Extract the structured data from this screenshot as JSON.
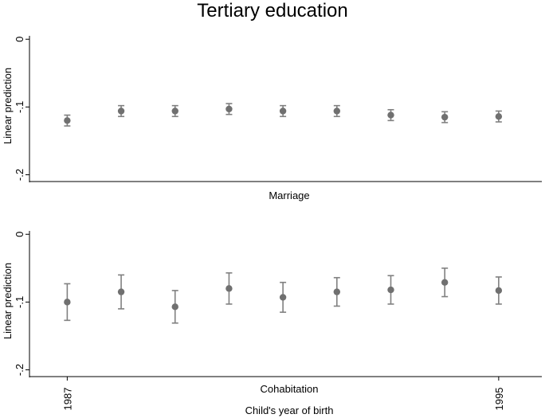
{
  "chart_data": {
    "type": "scatter",
    "title": "Tertiary education",
    "xlabel": "Child's year of birth",
    "x_tick_labels": [
      {
        "x": 1987,
        "label": "1987"
      },
      {
        "x": 1995,
        "label": "1995"
      }
    ],
    "xlim": [
      1986.3,
      1995.8
    ],
    "panels": [
      {
        "name": "Marriage",
        "ylabel": "Linear prediction",
        "ylim": [
          -0.21,
          0.005
        ],
        "yticks": [
          {
            "value": 0,
            "label": "0"
          },
          {
            "value": -0.1,
            "label": "-.1"
          },
          {
            "value": -0.2,
            "label": "-.2"
          }
        ],
        "x": [
          1987,
          1988,
          1989,
          1990,
          1991,
          1992,
          1993,
          1994,
          1995
        ],
        "y": [
          -0.12,
          -0.106,
          -0.106,
          -0.103,
          -0.106,
          -0.106,
          -0.112,
          -0.115,
          -0.114
        ],
        "ci_low": [
          -0.128,
          -0.114,
          -0.114,
          -0.111,
          -0.114,
          -0.114,
          -0.12,
          -0.123,
          -0.122
        ],
        "ci_high": [
          -0.112,
          -0.098,
          -0.098,
          -0.095,
          -0.098,
          -0.098,
          -0.104,
          -0.107,
          -0.106
        ]
      },
      {
        "name": "Cohabitation",
        "ylabel": "Linear prediction",
        "ylim": [
          -0.21,
          0.005
        ],
        "yticks": [
          {
            "value": 0,
            "label": "0"
          },
          {
            "value": -0.1,
            "label": "-.1"
          },
          {
            "value": -0.2,
            "label": "-.2"
          }
        ],
        "x": [
          1987,
          1988,
          1989,
          1990,
          1991,
          1992,
          1993,
          1994,
          1995
        ],
        "y": [
          -0.1,
          -0.085,
          -0.107,
          -0.08,
          -0.093,
          -0.085,
          -0.082,
          -0.071,
          -0.083
        ],
        "ci_low": [
          -0.127,
          -0.11,
          -0.131,
          -0.103,
          -0.115,
          -0.106,
          -0.103,
          -0.092,
          -0.103
        ],
        "ci_high": [
          -0.073,
          -0.06,
          -0.083,
          -0.057,
          -0.071,
          -0.064,
          -0.061,
          -0.05,
          -0.063
        ]
      }
    ]
  }
}
